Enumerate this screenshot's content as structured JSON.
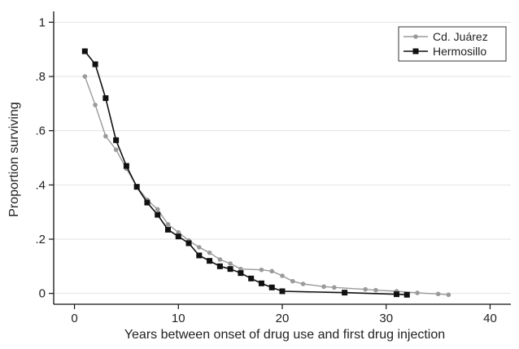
{
  "chart_data": {
    "type": "line",
    "xlabel": "Years between onset of drug use and first drug injection",
    "ylabel": "Proportion surviving",
    "xlim": [
      -2,
      42
    ],
    "ylim": [
      -0.04,
      1.04
    ],
    "x_ticks": [
      0,
      10,
      20,
      30,
      40
    ],
    "x_tick_labels": [
      "0",
      "10",
      "20",
      "30",
      "40"
    ],
    "y_ticks": [
      0,
      0.2,
      0.4,
      0.6,
      0.8,
      1
    ],
    "y_tick_labels": [
      "0",
      ".2",
      ".4",
      ".6",
      ".8",
      "1"
    ],
    "grid": "horizontal",
    "legend_position": "top-right",
    "series": [
      {
        "name": "Cd. Juárez",
        "color": "#9a9a9a",
        "marker": "circle",
        "x": [
          1,
          2,
          3,
          4,
          5,
          6,
          7,
          8,
          9,
          10,
          11,
          12,
          13,
          14,
          15,
          16,
          18,
          19,
          20,
          21,
          22,
          24,
          25,
          28,
          29,
          31,
          33,
          35,
          36
        ],
        "y": [
          0.8,
          0.695,
          0.58,
          0.53,
          0.46,
          0.395,
          0.345,
          0.31,
          0.255,
          0.225,
          0.195,
          0.17,
          0.15,
          0.125,
          0.11,
          0.09,
          0.087,
          0.082,
          0.065,
          0.045,
          0.035,
          0.025,
          0.022,
          0.015,
          0.012,
          0.008,
          0.002,
          -0.002,
          -0.005
        ]
      },
      {
        "name": "Hermosillo",
        "color": "#111111",
        "marker": "square",
        "x": [
          1,
          2,
          3,
          4,
          5,
          6,
          7,
          8,
          9,
          10,
          11,
          12,
          13,
          14,
          15,
          16,
          17,
          18,
          19,
          20,
          26,
          31,
          32
        ],
        "y": [
          0.893,
          0.845,
          0.72,
          0.565,
          0.47,
          0.393,
          0.335,
          0.29,
          0.235,
          0.21,
          0.185,
          0.14,
          0.12,
          0.1,
          0.09,
          0.075,
          0.055,
          0.037,
          0.022,
          0.008,
          0.003,
          -0.003,
          -0.005
        ]
      }
    ]
  }
}
